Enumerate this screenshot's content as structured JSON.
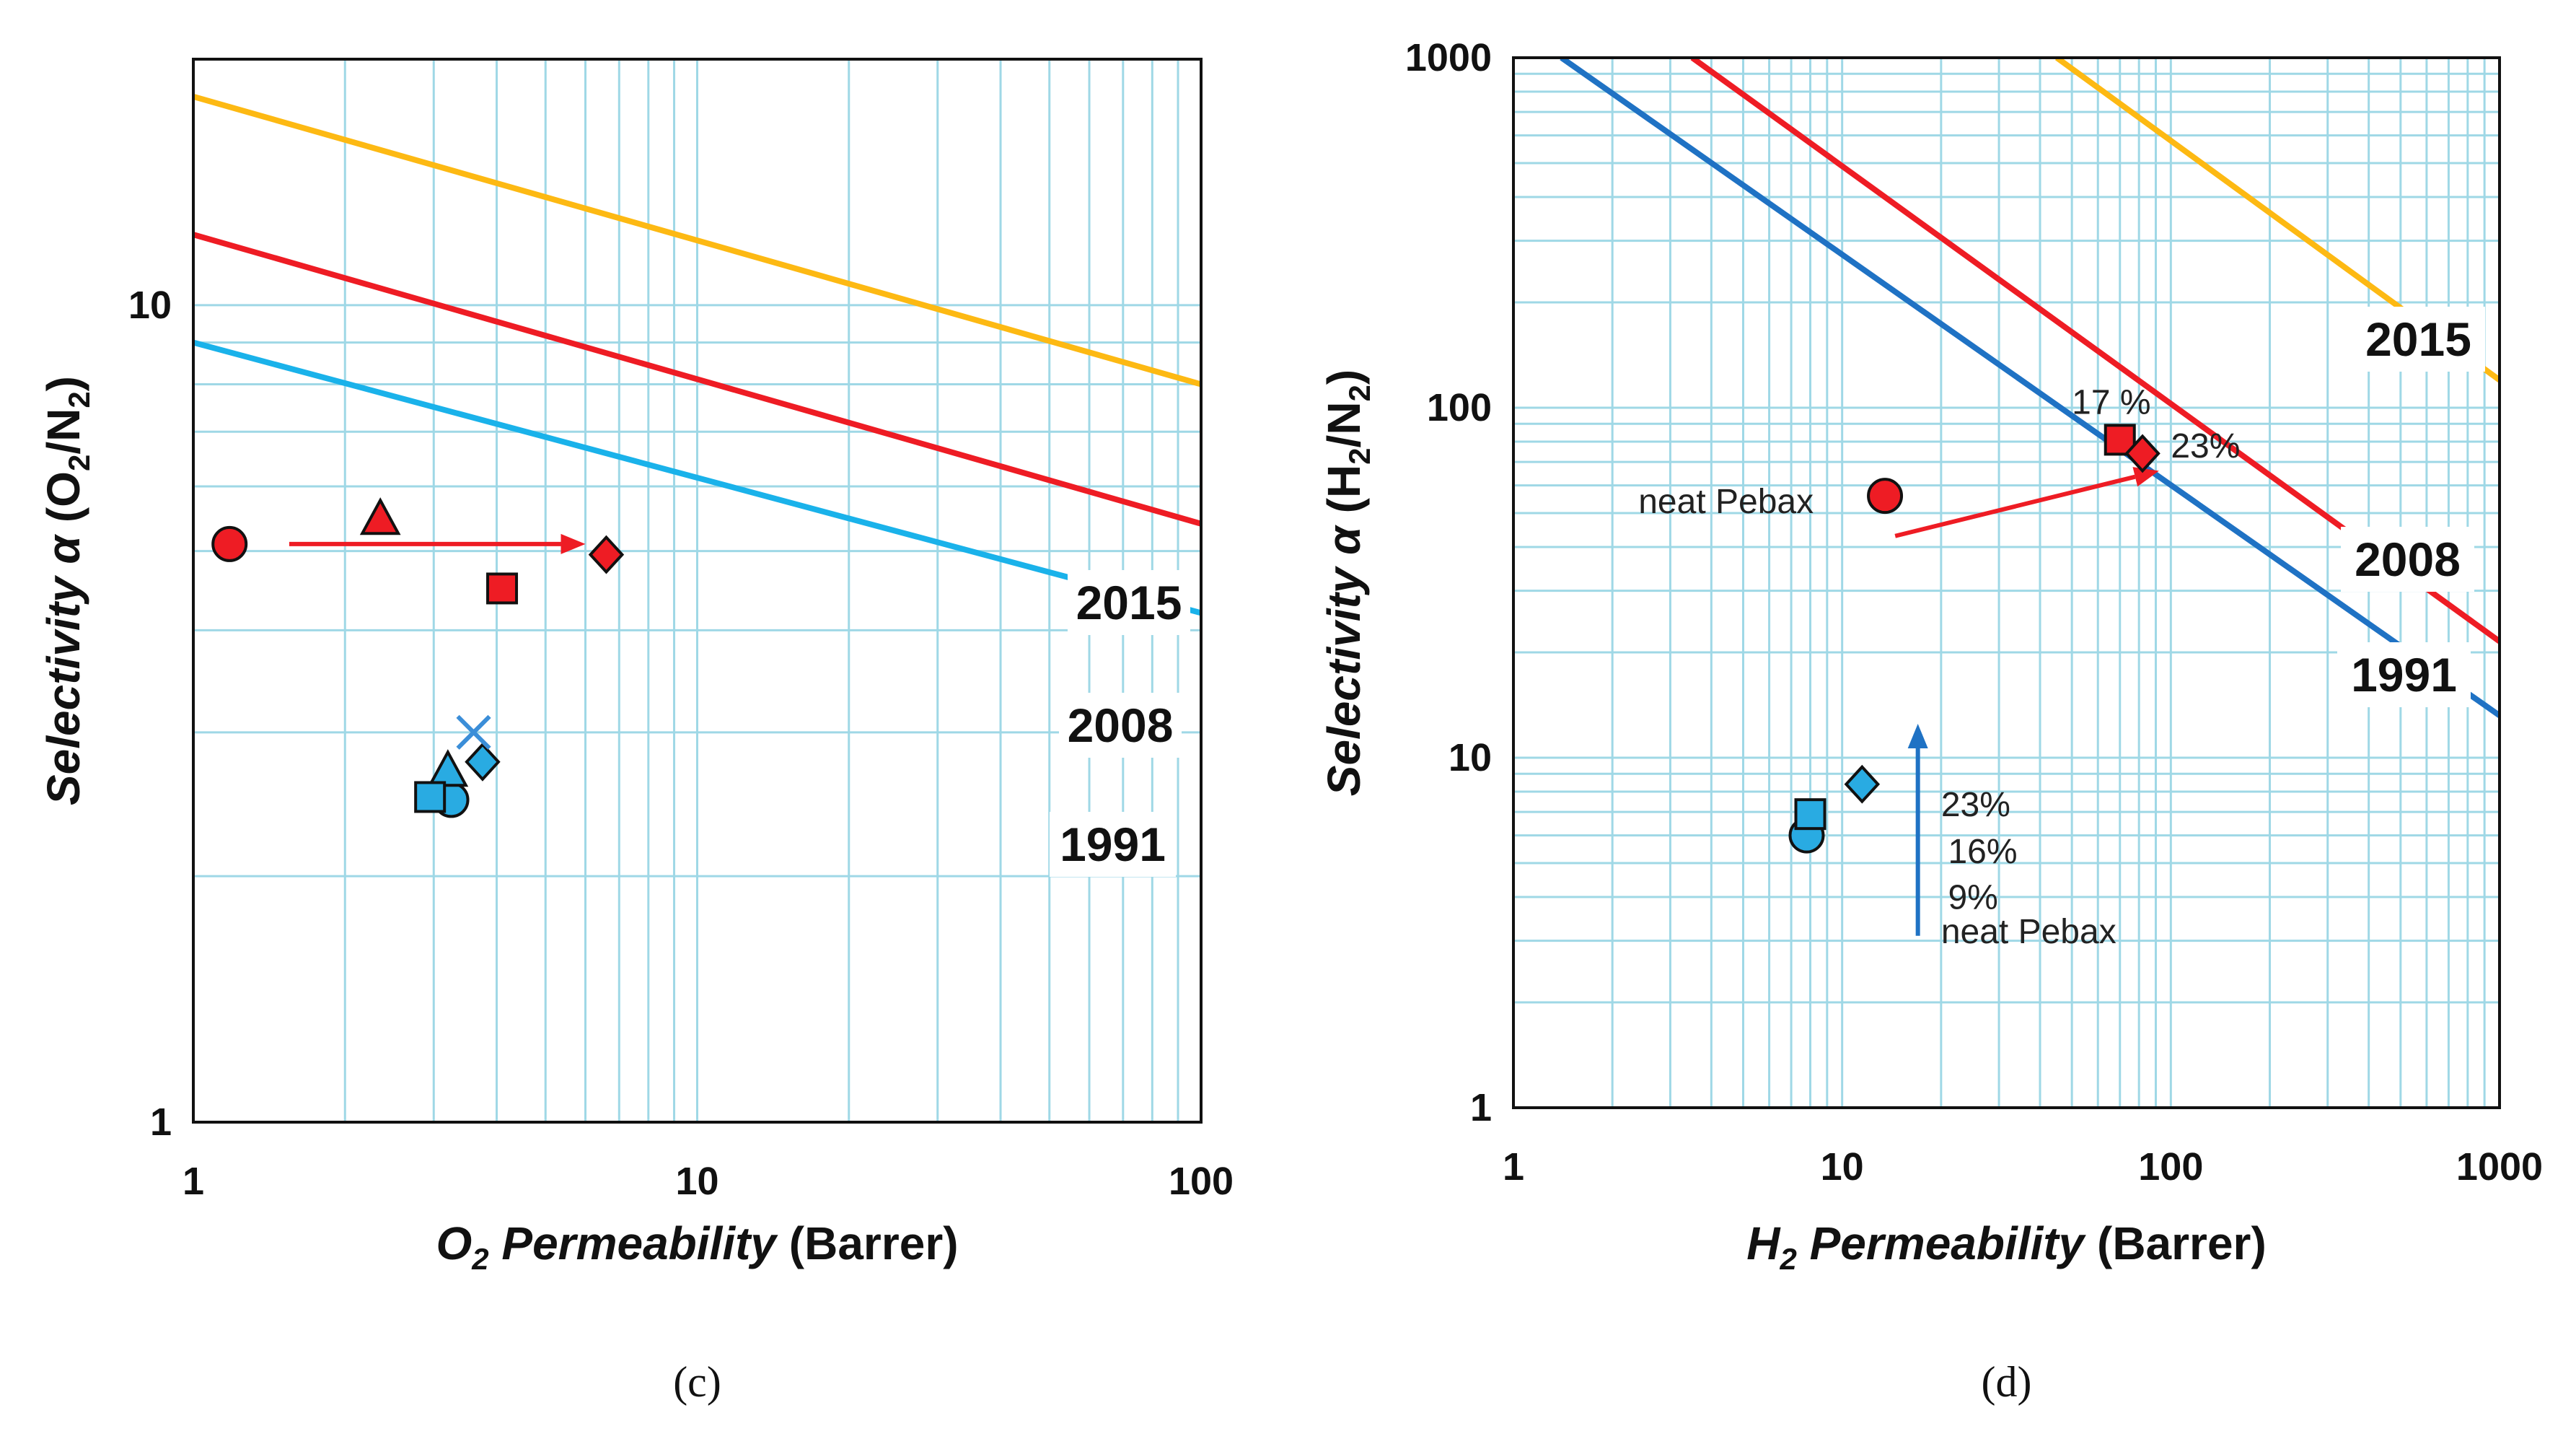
{
  "colors": {
    "bound_1991_c": "#1ab2ea",
    "bound_1991_d": "#1f72c4",
    "bound_2008": "#ee1c24",
    "bound_2015": "#fdb913",
    "red_marker": "#ee1c24",
    "blue_marker": "#29abe2",
    "arrow_red": "#ee1c24",
    "arrow_blue": "#1f72c4"
  },
  "chart_data": [
    {
      "panel": "c",
      "caption": "(c)",
      "type": "scatter",
      "x_scale": "log",
      "y_scale": "log",
      "xlim": [
        1,
        100
      ],
      "ylim": [
        1,
        20
      ],
      "x_ticks": [
        "1",
        "10",
        "100"
      ],
      "y_ticks": [
        "1",
        "10"
      ],
      "xlabel": {
        "gas": "O",
        "sub": "2",
        "rest": " Permeability",
        "unit": " (Barrer)"
      },
      "ylabel": {
        "prefix": "Selectivity α",
        "unit_open": " (O",
        "sub1": "2",
        "mid": "/N",
        "sub2": "2",
        "unit_close": ")"
      },
      "bounds": [
        {
          "name": "1991",
          "label": "1991",
          "color_key": "bound_1991_c",
          "x": [
            1,
            100
          ],
          "y": [
            9.0,
            4.2
          ]
        },
        {
          "name": "2008",
          "label": "2008",
          "color_key": "bound_2008",
          "x": [
            1,
            100
          ],
          "y": [
            12.2,
            5.4
          ]
        },
        {
          "name": "2015",
          "label": "2015",
          "color_key": "bound_2015",
          "x": [
            1,
            100
          ],
          "y": [
            18.0,
            8.0
          ]
        }
      ],
      "series": [
        {
          "name": "red",
          "color_key": "red_marker",
          "points": [
            {
              "shape": "circle",
              "x": 1.18,
              "y": 5.1
            },
            {
              "shape": "triangle",
              "x": 2.35,
              "y": 5.45
            },
            {
              "shape": "square",
              "x": 4.1,
              "y": 4.5
            },
            {
              "shape": "diamond",
              "x": 6.6,
              "y": 4.95
            }
          ]
        },
        {
          "name": "blue",
          "color_key": "blue_marker",
          "points": [
            {
              "shape": "circle",
              "x": 3.25,
              "y": 2.48
            },
            {
              "shape": "triangle",
              "x": 3.2,
              "y": 2.68
            },
            {
              "shape": "square",
              "x": 2.95,
              "y": 2.5
            },
            {
              "shape": "diamond",
              "x": 3.75,
              "y": 2.76
            },
            {
              "shape": "x",
              "x": 3.6,
              "y": 3.0
            }
          ]
        }
      ],
      "arrows": [
        {
          "color_key": "arrow_red",
          "from": [
            1.55,
            5.1
          ],
          "to": [
            6.0,
            5.1
          ]
        }
      ]
    },
    {
      "panel": "d",
      "caption": "(d)",
      "type": "scatter",
      "x_scale": "log",
      "y_scale": "log",
      "xlim": [
        1,
        1000
      ],
      "ylim": [
        1,
        1000
      ],
      "x_ticks": [
        "1",
        "10",
        "100",
        "1000"
      ],
      "y_ticks": [
        "1",
        "10",
        "100",
        "1000"
      ],
      "xlabel": {
        "gas": "H",
        "sub": "2",
        "rest": " Permeability",
        "unit": " (Barrer)"
      },
      "ylabel": {
        "prefix": "Selectivity α",
        "unit_open": " (H",
        "sub1": "2",
        "mid": "/N",
        "sub2": "2",
        "unit_close": ")"
      },
      "bounds": [
        {
          "name": "1991",
          "label": "1991",
          "color_key": "bound_1991_d",
          "x": [
            1.4,
            1000
          ],
          "y": [
            1000,
            13.2
          ]
        },
        {
          "name": "2008",
          "label": "2008",
          "color_key": "bound_2008",
          "x": [
            3.5,
            1000
          ],
          "y": [
            1000,
            21.5
          ]
        },
        {
          "name": "2015",
          "label": "2015",
          "color_key": "bound_2015",
          "x": [
            45,
            1000
          ],
          "y": [
            1000,
            120
          ]
        }
      ],
      "series": [
        {
          "name": "red",
          "color_key": "red_marker",
          "points": [
            {
              "shape": "circle",
              "x": 13.5,
              "y": 56
            },
            {
              "shape": "square",
              "x": 70,
              "y": 81
            },
            {
              "shape": "diamond",
              "x": 82,
              "y": 74
            }
          ]
        },
        {
          "name": "blue",
          "color_key": "blue_marker",
          "points": [
            {
              "shape": "circle",
              "x": 7.8,
              "y": 6.0
            },
            {
              "shape": "square",
              "x": 8.0,
              "y": 6.9
            },
            {
              "shape": "diamond",
              "x": 11.5,
              "y": 8.4
            }
          ]
        }
      ],
      "arrows": [
        {
          "color_key": "arrow_red",
          "from": [
            14.5,
            43
          ],
          "to": [
            92,
            66
          ]
        },
        {
          "color_key": "arrow_blue",
          "from": [
            17,
            3.1
          ],
          "to": [
            17,
            12.5
          ]
        }
      ],
      "annotations": [
        {
          "text": "17 %",
          "x": 50,
          "y": 96
        },
        {
          "text": "23%",
          "x": 100,
          "y": 72
        },
        {
          "text": "neat Pebax",
          "x": 2.4,
          "y": 50
        },
        {
          "text": "23%",
          "x": 20,
          "y": 6.8
        },
        {
          "text": "16%",
          "x": 21,
          "y": 5.0
        },
        {
          "text": "9%",
          "x": 21,
          "y": 3.7
        },
        {
          "text": "neat Pebax",
          "x": 20,
          "y": 2.95
        }
      ]
    }
  ]
}
